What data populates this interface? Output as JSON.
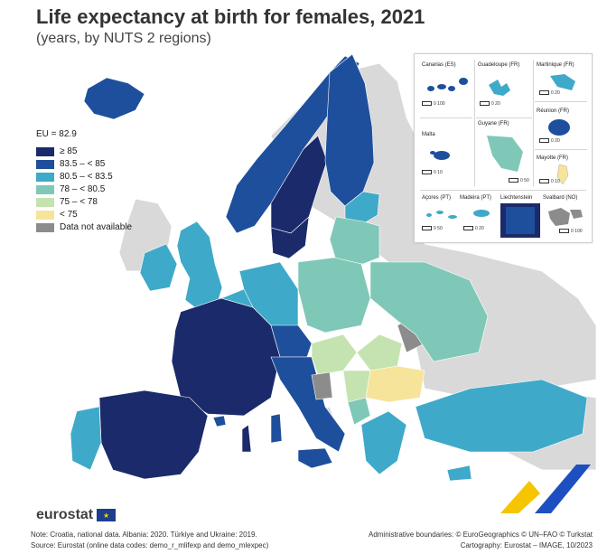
{
  "title": "Life expectancy at birth for females, 2021",
  "subtitle": "(years, by NUTS 2 regions)",
  "legend": {
    "eu_average": "EU = 82.9",
    "items": [
      {
        "label": "≥ 85",
        "color": "#1b2a6b"
      },
      {
        "label": "83.5 – < 85",
        "color": "#1e4f9c"
      },
      {
        "label": "80.5 – < 83.5",
        "color": "#3fa9c9"
      },
      {
        "label": "78 – < 80.5",
        "color": "#7fc8b8"
      },
      {
        "label": "75 – < 78",
        "color": "#c5e3b0"
      },
      {
        "label": "< 75",
        "color": "#f6e49a"
      },
      {
        "label": "Data not available",
        "color": "#8c8c8c"
      }
    ]
  },
  "colors": {
    "non_covered": "#d9d9d9",
    "sea": "#ffffff"
  },
  "insets": {
    "canarias": {
      "label": "Canarias (ES)",
      "scale": "0   100"
    },
    "guadeloupe": {
      "label": "Guadeloupe (FR)",
      "scale": "0   20"
    },
    "martinique": {
      "label": "Martinique (FR)",
      "scale": "0   20"
    },
    "reunion": {
      "label": "Réunion (FR)",
      "scale": "0   20"
    },
    "malta": {
      "label": "Malta",
      "scale": "0   10"
    },
    "guyane": {
      "label": "Guyane (FR)",
      "scale": "0   50"
    },
    "mayotte": {
      "label": "Mayotte (FR)",
      "scale": "0   10"
    },
    "acores": {
      "label": "Açores (PT)",
      "scale": "0   50"
    },
    "madeira": {
      "label": "Madeira (PT)",
      "scale": "0   20"
    },
    "liechtenstein": {
      "label": "Liechtenstein",
      "scale": ""
    },
    "svalbard": {
      "label": "Svalbard (NO)",
      "scale": "0   100"
    }
  },
  "logo": "eurostat",
  "footer": {
    "note": "Note: Croatia, national data. Albania: 2020. Türkiye and Ukraine: 2019.",
    "source": "Source: Eurostat (online data codes: demo_r_mlifexp and demo_mlexpec)",
    "admin": "Administrative boundaries: © EuroGeographics © UN–FAO © Turkstat",
    "carto": "Cartography: Eurostat – IMAGE, 10/2023"
  }
}
